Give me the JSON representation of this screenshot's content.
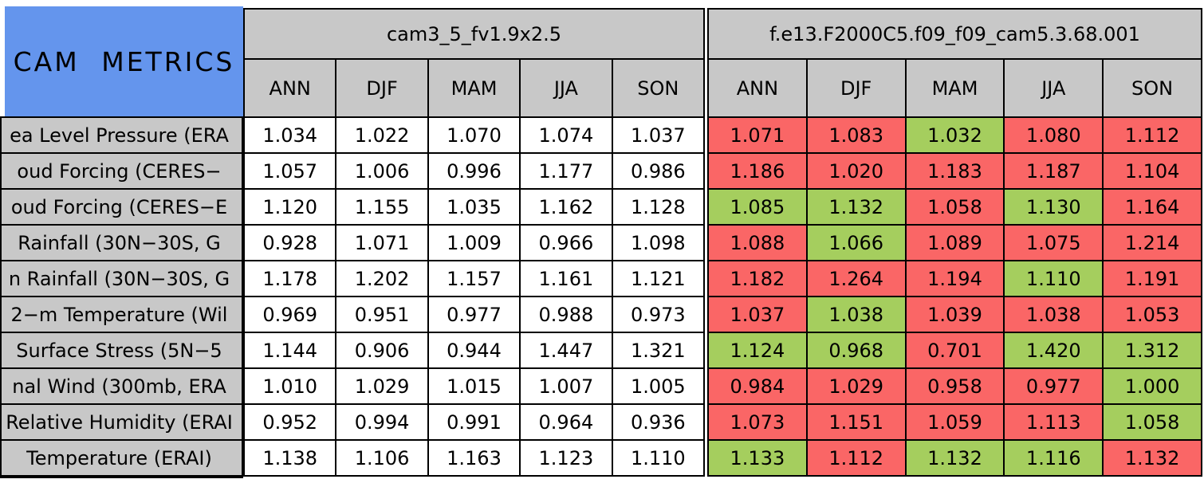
{
  "chart_data": {
    "type": "table",
    "title": "CAM METRICS",
    "colors": {
      "header_blue": "#6495ED",
      "header_gray": "#C8C8C8",
      "red": "#FA6666",
      "green": "#A5CE5E",
      "grid_black": "#000000",
      "plain_cell_white": "#FFFFFF"
    },
    "tables": [
      {
        "name": "cam3_5_fv1.9x2.5",
        "seasons": [
          "ANN",
          "DJF",
          "MAM",
          "JJA",
          "SON"
        ]
      },
      {
        "name": "f.e13.F2000C5.f09_f09_cam5.3.68.001",
        "seasons": [
          "ANN",
          "DJF",
          "MAM",
          "JJA",
          "SON"
        ]
      }
    ],
    "rows": [
      {
        "label": "ea Level Pressure (ERA",
        "model1": [
          "1.034",
          "1.022",
          "1.070",
          "1.074",
          "1.037"
        ],
        "model2": [
          "1.071",
          "1.083",
          "1.032",
          "1.080",
          "1.112"
        ],
        "model2_cell_colors": [
          "red",
          "red",
          "green",
          "red",
          "red"
        ]
      },
      {
        "label": "oud Forcing (CERES−",
        "model1": [
          "1.057",
          "1.006",
          "0.996",
          "1.177",
          "0.986"
        ],
        "model2": [
          "1.186",
          "1.020",
          "1.183",
          "1.187",
          "1.104"
        ],
        "model2_cell_colors": [
          "red",
          "red",
          "red",
          "red",
          "red"
        ]
      },
      {
        "label": "oud Forcing (CERES−E",
        "model1": [
          "1.120",
          "1.155",
          "1.035",
          "1.162",
          "1.128"
        ],
        "model2": [
          "1.085",
          "1.132",
          "1.058",
          "1.130",
          "1.164"
        ],
        "model2_cell_colors": [
          "green",
          "green",
          "red",
          "green",
          "red"
        ]
      },
      {
        "label": "Rainfall (30N−30S, G",
        "model1": [
          "0.928",
          "1.071",
          "1.009",
          "0.966",
          "1.098"
        ],
        "model2": [
          "1.088",
          "1.066",
          "1.089",
          "1.075",
          "1.214"
        ],
        "model2_cell_colors": [
          "red",
          "green",
          "red",
          "red",
          "red"
        ]
      },
      {
        "label": "n Rainfall (30N−30S, G",
        "model1": [
          "1.178",
          "1.202",
          "1.157",
          "1.161",
          "1.121"
        ],
        "model2": [
          "1.182",
          "1.264",
          "1.194",
          "1.110",
          "1.191"
        ],
        "model2_cell_colors": [
          "red",
          "red",
          "red",
          "green",
          "red"
        ]
      },
      {
        "label": "2−m Temperature (Wil",
        "model1": [
          "0.969",
          "0.951",
          "0.977",
          "0.988",
          "0.973"
        ],
        "model2": [
          "1.037",
          "1.038",
          "1.039",
          "1.038",
          "1.053"
        ],
        "model2_cell_colors": [
          "red",
          "green",
          "red",
          "red",
          "red"
        ]
      },
      {
        "label": "Surface Stress (5N−5",
        "model1": [
          "1.144",
          "0.906",
          "0.944",
          "1.447",
          "1.321"
        ],
        "model2": [
          "1.124",
          "0.968",
          "0.701",
          "1.420",
          "1.312"
        ],
        "model2_cell_colors": [
          "green",
          "green",
          "red",
          "green",
          "green"
        ]
      },
      {
        "label": "nal Wind (300mb, ERA",
        "model1": [
          "1.010",
          "1.029",
          "1.015",
          "1.007",
          "1.005"
        ],
        "model2": [
          "0.984",
          "1.029",
          "0.958",
          "0.977",
          "1.000"
        ],
        "model2_cell_colors": [
          "red",
          "red",
          "red",
          "red",
          "green"
        ]
      },
      {
        "label": "Relative Humidity (ERAI",
        "model1": [
          "0.952",
          "0.994",
          "0.991",
          "0.964",
          "0.936"
        ],
        "model2": [
          "1.073",
          "1.151",
          "1.059",
          "1.113",
          "1.058"
        ],
        "model2_cell_colors": [
          "red",
          "red",
          "red",
          "red",
          "green"
        ]
      },
      {
        "label": "Temperature (ERAI)",
        "model1": [
          "1.138",
          "1.106",
          "1.163",
          "1.123",
          "1.110"
        ],
        "model2": [
          "1.133",
          "1.112",
          "1.132",
          "1.116",
          "1.132"
        ],
        "model2_cell_colors": [
          "green",
          "red",
          "green",
          "green",
          "red"
        ]
      }
    ]
  }
}
